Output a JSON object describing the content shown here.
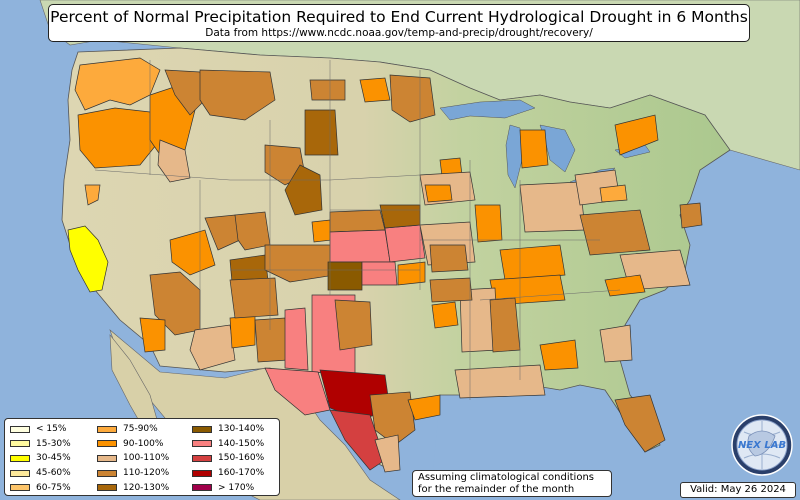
{
  "title": "Percent of Normal Precipitation Required to End Current Hydrological Drought in 6 Months",
  "subtitle": "Data from https://www.ncdc.noaa.gov/temp-and-precip/drought/recovery/",
  "note_lines": [
    "Assuming climatological conditions",
    "for the remainder of the month"
  ],
  "valid_text": "Valid: May 26 2024",
  "logo": {
    "text": "NEX LAB",
    "icon": "globe-icon"
  },
  "legend": {
    "columns": [
      [
        {
          "label": "< 15%",
          "color": "#ffffe0"
        },
        {
          "label": "15-30%",
          "color": "#fffaa0"
        },
        {
          "label": "30-45%",
          "color": "#ffff00"
        },
        {
          "label": "45-60%",
          "color": "#fce89a"
        },
        {
          "label": "60-75%",
          "color": "#fcc46a"
        }
      ],
      [
        {
          "label": "75-90%",
          "color": "#fdaa3c"
        },
        {
          "label": "90-100%",
          "color": "#fb9200"
        },
        {
          "label": "100-110%",
          "color": "#e6b88a"
        },
        {
          "label": "110-120%",
          "color": "#cc8433"
        },
        {
          "label": "120-130%",
          "color": "#a8670a"
        }
      ],
      [
        {
          "label": "130-140%",
          "color": "#8a5a00"
        },
        {
          "label": "140-150%",
          "color": "#f88080"
        },
        {
          "label": "150-160%",
          "color": "#d44040"
        },
        {
          "label": "160-170%",
          "color": "#b00000"
        },
        {
          "label": "> 170%",
          "color": "#a0004a"
        }
      ]
    ]
  },
  "colors": {
    "ocean": "#8fb3dc",
    "land_east": "#b9cf9c",
    "land_west": "#dcd7b4",
    "canada": "#c9d8b2",
    "mexico": "#d8d0a8",
    "lakes": "#7aa6d6"
  }
}
